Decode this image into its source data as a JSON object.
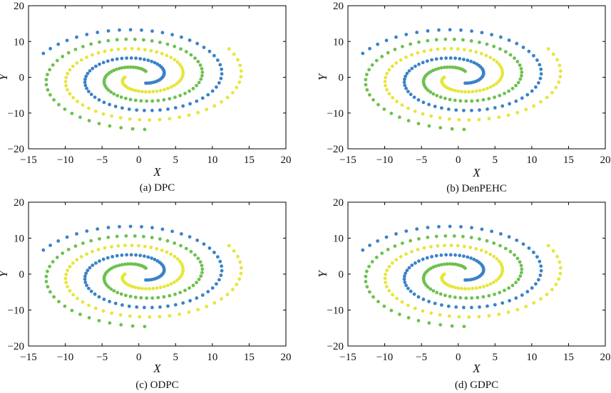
{
  "colors": {
    "spiral_1": "#3a82c8",
    "spiral_2": "#6cc14f",
    "spiral_3": "#e6e63a"
  },
  "chart_data": [
    {
      "type": "scatter",
      "caption": "(a) DPC",
      "xlabel": "X",
      "ylabel": "Y",
      "xlim": [
        -15,
        20
      ],
      "ylim": [
        -20,
        20
      ],
      "xticks": [
        "−15",
        "−10",
        "−5",
        "0",
        "5",
        "10",
        "15",
        "20"
      ],
      "yticks": [
        "−20",
        "−10",
        "0",
        "10",
        "20"
      ],
      "grid": false,
      "series": [
        {
          "color": "#3a82c8",
          "spiral": {
            "theta_start": -1.05,
            "theta_end": 8.95,
            "r_start": 1.9,
            "r_end": 14.6,
            "points": 90
          }
        },
        {
          "color": "#6cc14f",
          "spiral": {
            "theta_start": 1.05,
            "theta_end": 11.05,
            "r_start": 1.9,
            "r_end": 14.6,
            "points": 90
          }
        },
        {
          "color": "#e6e63a",
          "spiral": {
            "theta_start": 3.14,
            "theta_end": 13.14,
            "r_start": 1.9,
            "r_end": 14.6,
            "points": 90
          }
        }
      ]
    },
    {
      "type": "scatter",
      "caption": "(b) DenPEHC",
      "xlabel": "X",
      "ylabel": "Y",
      "xlim": [
        -15,
        20
      ],
      "ylim": [
        -20,
        20
      ],
      "xticks": [
        "−15",
        "−10",
        "−5",
        "0",
        "5",
        "10",
        "15",
        "20"
      ],
      "yticks": [
        "−20",
        "−10",
        "0",
        "10",
        "20"
      ],
      "grid": false,
      "series": [
        {
          "color": "#3a82c8",
          "spiral": {
            "theta_start": -1.05,
            "theta_end": 8.95,
            "r_start": 1.9,
            "r_end": 14.6,
            "points": 90
          }
        },
        {
          "color": "#6cc14f",
          "spiral": {
            "theta_start": 1.05,
            "theta_end": 11.05,
            "r_start": 1.9,
            "r_end": 14.6,
            "points": 90
          }
        },
        {
          "color": "#e6e63a",
          "spiral": {
            "theta_start": 3.14,
            "theta_end": 13.14,
            "r_start": 1.9,
            "r_end": 14.6,
            "points": 90
          }
        }
      ]
    },
    {
      "type": "scatter",
      "caption": "(c) ODPC",
      "xlabel": "X",
      "ylabel": "Y",
      "xlim": [
        -15,
        20
      ],
      "ylim": [
        -20,
        20
      ],
      "xticks": [
        "−15",
        "−10",
        "−5",
        "0",
        "5",
        "10",
        "15",
        "20"
      ],
      "yticks": [
        "−20",
        "−10",
        "0",
        "10",
        "20"
      ],
      "grid": false,
      "series": [
        {
          "color": "#3a82c8",
          "spiral": {
            "theta_start": -1.05,
            "theta_end": 8.95,
            "r_start": 1.9,
            "r_end": 14.6,
            "points": 90
          }
        },
        {
          "color": "#6cc14f",
          "spiral": {
            "theta_start": 1.05,
            "theta_end": 11.05,
            "r_start": 1.9,
            "r_end": 14.6,
            "points": 90
          }
        },
        {
          "color": "#e6e63a",
          "spiral": {
            "theta_start": 3.14,
            "theta_end": 13.14,
            "r_start": 1.9,
            "r_end": 14.6,
            "points": 90
          }
        }
      ]
    },
    {
      "type": "scatter",
      "caption": "(d) GDPC",
      "xlabel": "X",
      "ylabel": "Y",
      "xlim": [
        -15,
        20
      ],
      "ylim": [
        -20,
        20
      ],
      "xticks": [
        "−15",
        "−10",
        "−5",
        "0",
        "5",
        "10",
        "15",
        "20"
      ],
      "yticks": [
        "−20",
        "−10",
        "0",
        "10",
        "20"
      ],
      "grid": false,
      "series": [
        {
          "color": "#3a82c8",
          "spiral": {
            "theta_start": -1.05,
            "theta_end": 8.95,
            "r_start": 1.9,
            "r_end": 14.6,
            "points": 90
          }
        },
        {
          "color": "#6cc14f",
          "spiral": {
            "theta_start": 1.05,
            "theta_end": 11.05,
            "r_start": 1.9,
            "r_end": 14.6,
            "points": 90
          }
        },
        {
          "color": "#e6e63a",
          "spiral": {
            "theta_start": 3.14,
            "theta_end": 13.14,
            "r_start": 1.9,
            "r_end": 14.6,
            "points": 90
          }
        }
      ]
    }
  ]
}
